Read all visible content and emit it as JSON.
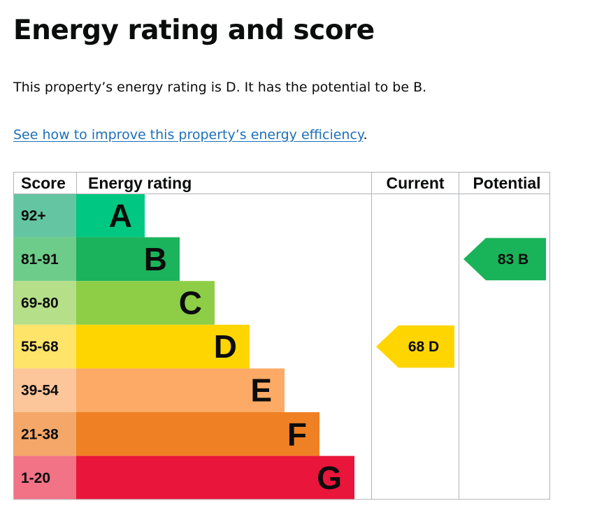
{
  "page": {
    "title": "Energy rating and score",
    "summary": "This property’s energy rating is D. It has the potential to be B.",
    "improve_link": "See how to improve this property’s energy efficiency",
    "improve_link_suffix": "."
  },
  "chart_data": {
    "type": "table",
    "columns": [
      "Score",
      "Energy rating",
      "Current",
      "Potential"
    ],
    "bands": [
      {
        "score": "92+",
        "rating": "A",
        "band_color": "#008054",
        "score_color": "#64c5a2"
      },
      {
        "score": "81-91",
        "rating": "B",
        "band_color": "#19b459",
        "score_color": "#6ecc8a"
      },
      {
        "score": "69-80",
        "rating": "C",
        "band_color": "#8dce46",
        "score_color": "#b6df8a"
      },
      {
        "score": "55-68",
        "rating": "D",
        "band_color": "#ffd500",
        "score_color": "#ffe46a"
      },
      {
        "score": "39-54",
        "rating": "E",
        "band_color": "#fcaa65",
        "score_color": "#fdc69a"
      },
      {
        "score": "21-38",
        "rating": "F",
        "band_color": "#ef8023",
        "score_color": "#f4a769"
      },
      {
        "score": "1-20",
        "rating": "G",
        "band_color": "#e9153b",
        "score_color": "#f27286"
      }
    ],
    "band_a_color": "#00c781",
    "band_b_color": "#1bb35b",
    "band_c_color": "#8dce46",
    "current": {
      "score": 68,
      "rating": "D",
      "label": "68  D",
      "color": "#ffd500"
    },
    "potential": {
      "score": 83,
      "rating": "B",
      "label": "83  B",
      "color": "#19b459"
    }
  }
}
